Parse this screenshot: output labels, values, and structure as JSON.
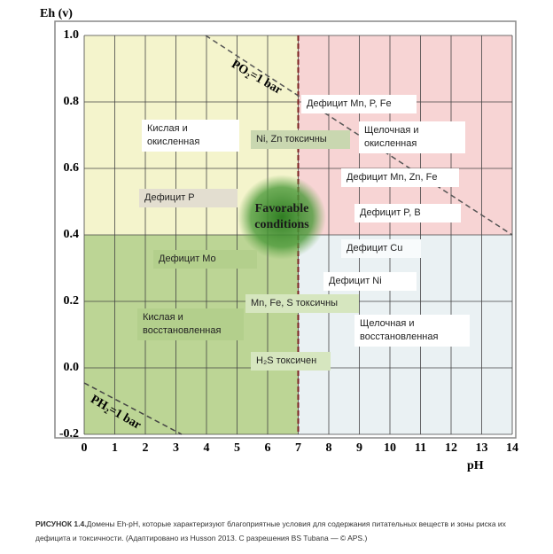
{
  "chart_data": {
    "type": "region",
    "xlabel": "pH",
    "ylabel": "Eh (v)",
    "xlim": [
      0,
      14
    ],
    "ylim": [
      -0.2,
      1.0
    ],
    "xticks": [
      0,
      1,
      2,
      3,
      4,
      5,
      6,
      7,
      8,
      9,
      10,
      11,
      12,
      13,
      14
    ],
    "yticks": [
      -0.2,
      {
        "value": 0,
        "label": "0.0"
      },
      0.2,
      0.4,
      0.6,
      0.8,
      {
        "value": 1,
        "label": "1.0"
      }
    ],
    "grid": true,
    "regions": [
      {
        "xlim": [
          0,
          7
        ],
        "ylim": [
          0.4,
          1.0
        ],
        "color": "#f4f4cc"
      },
      {
        "xlim": [
          7,
          14
        ],
        "ylim": [
          0.4,
          1.0
        ],
        "color": "#f7d4d4"
      },
      {
        "xlim": [
          0,
          7
        ],
        "ylim": [
          -0.2,
          0.4
        ],
        "color": "#bcd595"
      },
      {
        "xlim": [
          7,
          14
        ],
        "ylim": [
          -0.2,
          0.4
        ],
        "color": "#eaf1f3"
      }
    ],
    "boundary_x": 7,
    "line_labels": [
      "PO₂=1 bar",
      "PH₂=1 bar"
    ],
    "center_label": "Favorable conditions",
    "annotations": [
      "Дефицит Mn, P, Fe",
      "Кислая и окисленная",
      "Ni, Zn токсичны",
      "Щелочная и окисленная",
      "Дефицит Mn, Zn, Fe",
      "Дефицит P",
      "Дефицит P, B",
      "Дефицит Cu",
      "Дефицит Mo",
      "Дефицит Ni",
      "Mn, Fe, S токсичны",
      "Кислая и восстановленная",
      "Щелочная и восстановленная",
      "H₂S токсичен"
    ],
    "caption_label": "РИСУНОК 1.4.",
    "caption": "Домены Eh-pH, которые характеризуют благоприятные условия для содержания питательных веществ и зоны риска их дефицита и токсичности. (Адаптировано из Husson 2013. С разрешения BS Tubana — © APS.)"
  }
}
